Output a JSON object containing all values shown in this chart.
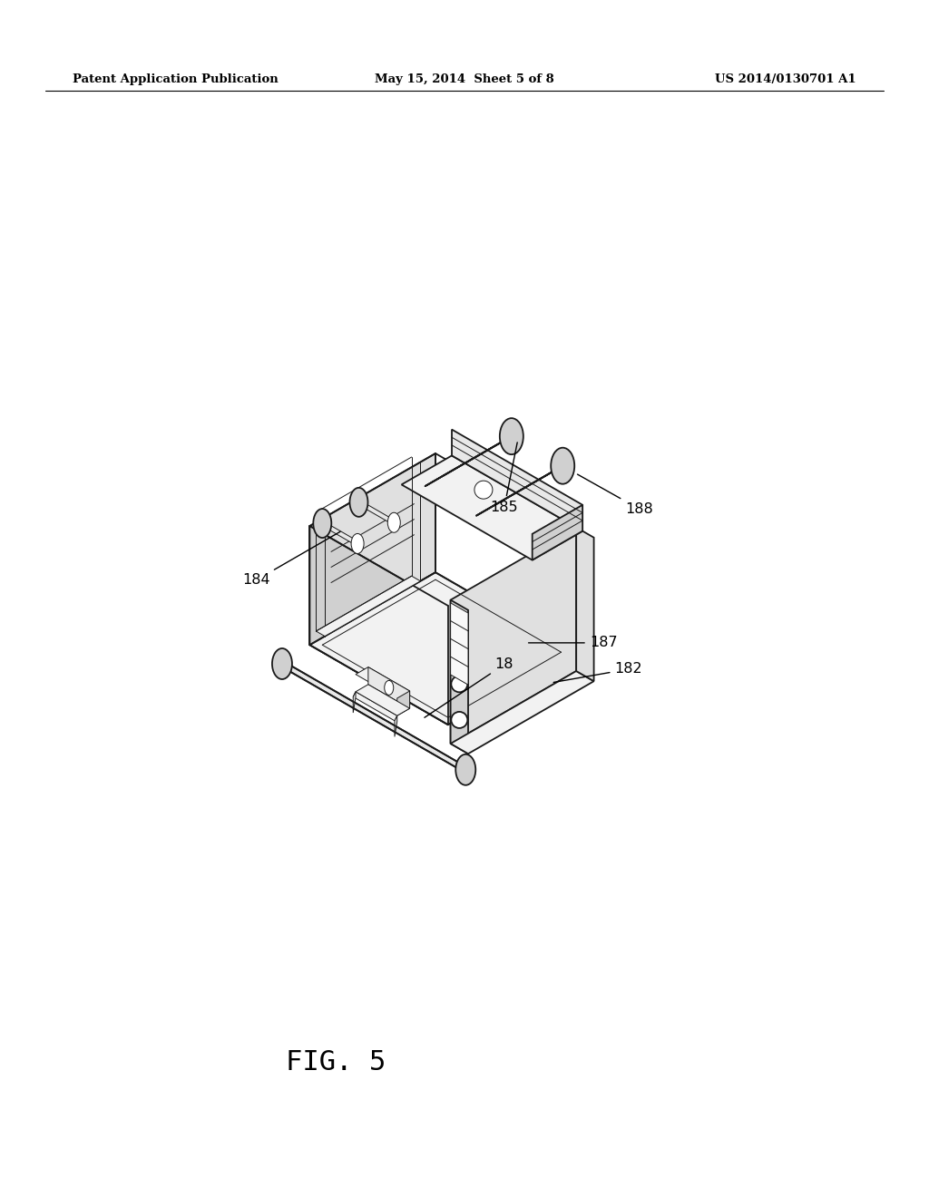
{
  "bg_color": "#ffffff",
  "lc": "#1a1a1a",
  "lw": 1.3,
  "lw_thin": 0.7,
  "fill_top": "#f2f2f2",
  "fill_left": "#e0e0e0",
  "fill_right": "#d0d0d0",
  "fill_dark": "#c8c8c8",
  "fill_mid": "#e8e8e8",
  "header_left": "Patent Application Publication",
  "header_center": "May 15, 2014  Sheet 5 of 8",
  "header_right": "US 2014/0130701 A1",
  "fig_label": "FIG. 5"
}
